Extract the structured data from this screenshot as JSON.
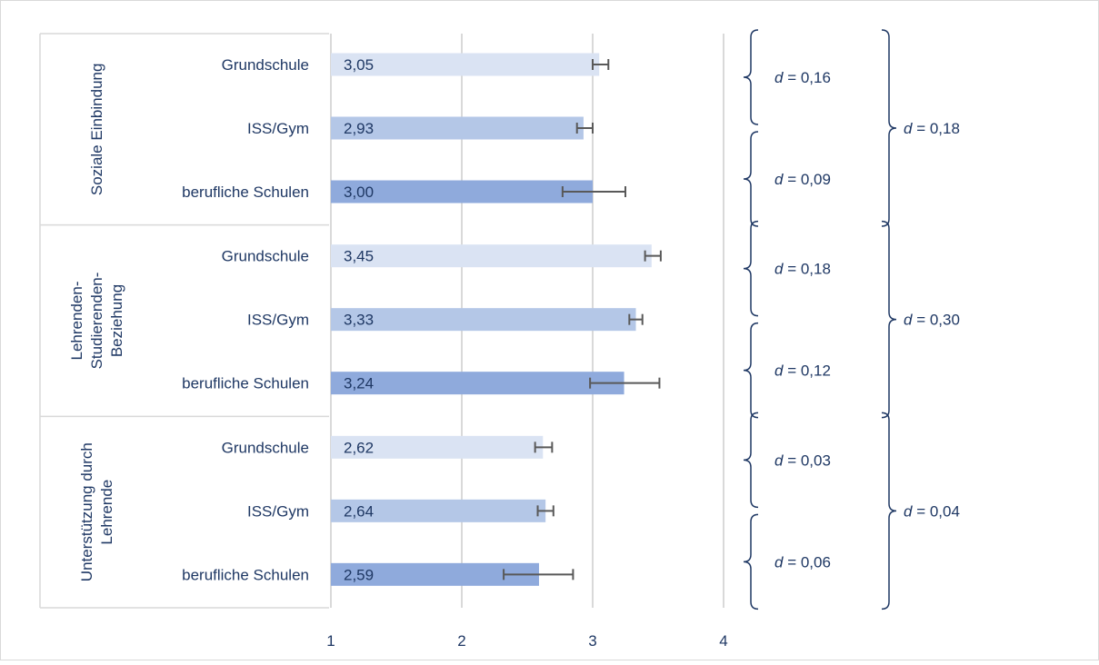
{
  "chart_data": {
    "type": "bar",
    "orientation": "horizontal",
    "xlim": [
      1,
      4
    ],
    "x_ticks": [
      "1",
      "2",
      "3",
      "4"
    ],
    "grid": true,
    "groups": [
      {
        "label": "Soziale Einbindung",
        "bars": [
          {
            "category": "Grundschule",
            "value": 3.05,
            "label": "3,05",
            "err": [
              3.0,
              3.12
            ]
          },
          {
            "category": "ISS/Gym",
            "value": 2.93,
            "label": "2,93",
            "err": [
              2.88,
              3.0
            ]
          },
          {
            "category": "berufliche Schulen",
            "value": 3.0,
            "label": "3,00",
            "err": [
              2.77,
              3.25
            ]
          }
        ],
        "effects": [
          "d = 0,16",
          "d = 0,09"
        ],
        "overall_effect": "d = 0,18"
      },
      {
        "label": "Lehrenden-Studierenden-Beziehung",
        "label_lines": [
          "Lehrenden-",
          "Studierenden-",
          "Beziehung"
        ],
        "bars": [
          {
            "category": "Grundschule",
            "value": 3.45,
            "label": "3,45",
            "err": [
              3.4,
              3.52
            ]
          },
          {
            "category": "ISS/Gym",
            "value": 3.33,
            "label": "3,33",
            "err": [
              3.28,
              3.38
            ]
          },
          {
            "category": "berufliche Schulen",
            "value": 3.24,
            "label": "3,24",
            "err": [
              2.98,
              3.51
            ]
          }
        ],
        "effects": [
          "d = 0,18",
          "d = 0,12"
        ],
        "overall_effect": "d = 0,30"
      },
      {
        "label": "Unterstützung durch Lehrende",
        "label_lines": [
          "Unterstützung durch",
          "Lehrende"
        ],
        "bars": [
          {
            "category": "Grundschule",
            "value": 2.62,
            "label": "2,62",
            "err": [
              2.56,
              2.69
            ]
          },
          {
            "category": "ISS/Gym",
            "value": 2.64,
            "label": "2,64",
            "err": [
              2.58,
              2.7
            ]
          },
          {
            "category": "berufliche Schulen",
            "value": 2.59,
            "label": "2,59",
            "err": [
              2.32,
              2.85
            ]
          }
        ],
        "effects": [
          "d = 0,03",
          "d = 0,06"
        ],
        "overall_effect": "d = 0,04"
      }
    ],
    "colors": {
      "Grundschule": "#dae3f3",
      "ISS/Gym": "#b4c7e7",
      "berufliche Schulen": "#8faadc",
      "text": "#1f3864",
      "grid": "#d9d9d9",
      "errorbar": "#595959"
    }
  }
}
